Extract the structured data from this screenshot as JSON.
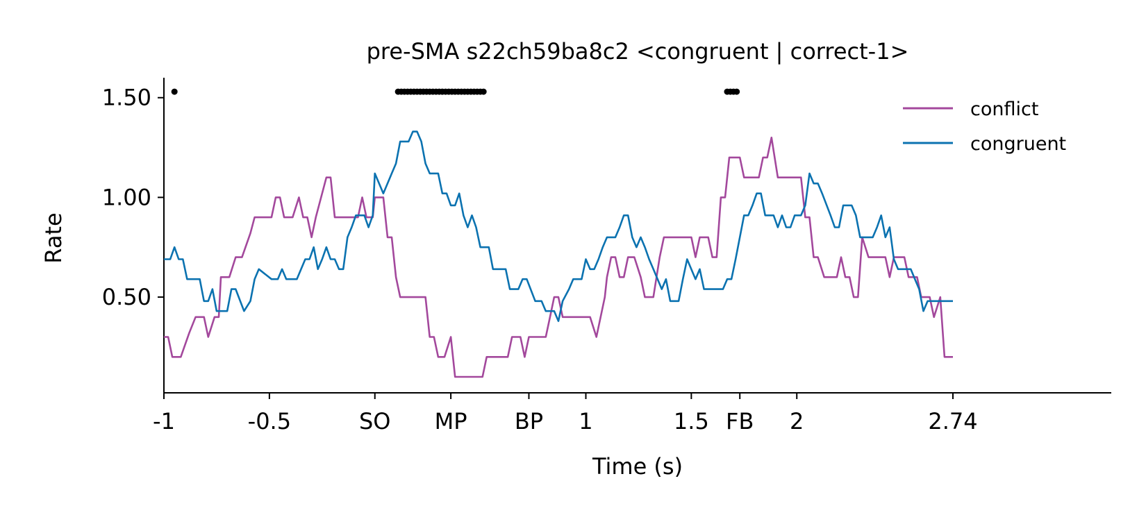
{
  "chart_data": {
    "type": "line",
    "title": "pre-SMA s22ch59ba8c2 <congruent | correct-1>",
    "xlabel": "Time (s)",
    "ylabel": "Rate",
    "xlim": [
      -1,
      3.5
    ],
    "ylim": [
      0.02,
      1.6
    ],
    "x_ticks": [
      {
        "value": -1,
        "label": "-1"
      },
      {
        "value": -0.5,
        "label": "-0.5"
      },
      {
        "value": 0,
        "label": "SO"
      },
      {
        "value": 0.36,
        "label": "MP"
      },
      {
        "value": 0.73,
        "label": "BP"
      },
      {
        "value": 1,
        "label": "1"
      },
      {
        "value": 1.5,
        "label": "1.5"
      },
      {
        "value": 1.73,
        "label": "FB"
      },
      {
        "value": 2,
        "label": "2"
      },
      {
        "value": 2.74,
        "label": "2.74"
      }
    ],
    "y_ticks": [
      {
        "value": 0.5,
        "label": "0.50"
      },
      {
        "value": 1.0,
        "label": "1.00"
      },
      {
        "value": 1.5,
        "label": "1.50"
      }
    ],
    "legend_position": "top-right",
    "grid": false,
    "series": [
      {
        "name": "conflict",
        "color": "#a3489c",
        "points": [
          [
            -1.0,
            0.3
          ],
          [
            -0.98,
            0.3
          ],
          [
            -0.96,
            0.2
          ],
          [
            -0.92,
            0.2
          ],
          [
            -0.88,
            0.32
          ],
          [
            -0.85,
            0.4
          ],
          [
            -0.81,
            0.4
          ],
          [
            -0.79,
            0.3
          ],
          [
            -0.76,
            0.4
          ],
          [
            -0.74,
            0.4
          ],
          [
            -0.73,
            0.6
          ],
          [
            -0.69,
            0.6
          ],
          [
            -0.66,
            0.7
          ],
          [
            -0.63,
            0.7
          ],
          [
            -0.59,
            0.82
          ],
          [
            -0.57,
            0.9
          ],
          [
            -0.49,
            0.9
          ],
          [
            -0.47,
            1.0
          ],
          [
            -0.45,
            1.0
          ],
          [
            -0.43,
            0.9
          ],
          [
            -0.39,
            0.9
          ],
          [
            -0.36,
            1.0
          ],
          [
            -0.34,
            0.9
          ],
          [
            -0.32,
            0.9
          ],
          [
            -0.3,
            0.8
          ],
          [
            -0.28,
            0.9
          ],
          [
            -0.23,
            1.1
          ],
          [
            -0.21,
            1.1
          ],
          [
            -0.19,
            0.9
          ],
          [
            -0.08,
            0.9
          ],
          [
            -0.06,
            1.0
          ],
          [
            -0.04,
            0.9
          ],
          [
            -0.01,
            0.9
          ],
          [
            0.0,
            1.0
          ],
          [
            0.04,
            1.0
          ],
          [
            0.06,
            0.8
          ],
          [
            0.08,
            0.8
          ],
          [
            0.1,
            0.6
          ],
          [
            0.12,
            0.5
          ],
          [
            0.24,
            0.5
          ],
          [
            0.26,
            0.3
          ],
          [
            0.28,
            0.3
          ],
          [
            0.3,
            0.2
          ],
          [
            0.33,
            0.2
          ],
          [
            0.36,
            0.3
          ],
          [
            0.38,
            0.1
          ],
          [
            0.51,
            0.1
          ],
          [
            0.53,
            0.2
          ],
          [
            0.63,
            0.2
          ],
          [
            0.65,
            0.3
          ],
          [
            0.69,
            0.3
          ],
          [
            0.71,
            0.2
          ],
          [
            0.73,
            0.3
          ],
          [
            0.81,
            0.3
          ],
          [
            0.83,
            0.4
          ],
          [
            0.85,
            0.5
          ],
          [
            0.87,
            0.5
          ],
          [
            0.89,
            0.4
          ],
          [
            0.99,
            0.4
          ],
          [
            1.02,
            0.4
          ],
          [
            1.05,
            0.3
          ],
          [
            1.09,
            0.5
          ],
          [
            1.1,
            0.6
          ],
          [
            1.12,
            0.7
          ],
          [
            1.14,
            0.7
          ],
          [
            1.16,
            0.6
          ],
          [
            1.18,
            0.6
          ],
          [
            1.2,
            0.7
          ],
          [
            1.23,
            0.7
          ],
          [
            1.26,
            0.6
          ],
          [
            1.28,
            0.5
          ],
          [
            1.32,
            0.5
          ],
          [
            1.35,
            0.7
          ],
          [
            1.37,
            0.8
          ],
          [
            1.5,
            0.8
          ],
          [
            1.52,
            0.7
          ],
          [
            1.54,
            0.8
          ],
          [
            1.58,
            0.8
          ],
          [
            1.6,
            0.7
          ],
          [
            1.62,
            0.7
          ],
          [
            1.64,
            1.0
          ],
          [
            1.66,
            1.0
          ],
          [
            1.68,
            1.2
          ],
          [
            1.73,
            1.2
          ],
          [
            1.75,
            1.1
          ],
          [
            1.82,
            1.1
          ],
          [
            1.84,
            1.2
          ],
          [
            1.86,
            1.2
          ],
          [
            1.88,
            1.3
          ],
          [
            1.91,
            1.1
          ],
          [
            2.02,
            1.1
          ],
          [
            2.04,
            0.9
          ],
          [
            2.06,
            0.9
          ],
          [
            2.08,
            0.7
          ],
          [
            2.1,
            0.7
          ],
          [
            2.13,
            0.6
          ],
          [
            2.19,
            0.6
          ],
          [
            2.21,
            0.7
          ],
          [
            2.23,
            0.6
          ],
          [
            2.25,
            0.6
          ],
          [
            2.27,
            0.5
          ],
          [
            2.29,
            0.5
          ],
          [
            2.31,
            0.8
          ],
          [
            2.34,
            0.7
          ],
          [
            2.42,
            0.7
          ],
          [
            2.44,
            0.6
          ],
          [
            2.46,
            0.7
          ],
          [
            2.51,
            0.7
          ],
          [
            2.53,
            0.6
          ],
          [
            2.57,
            0.6
          ],
          [
            2.59,
            0.5
          ],
          [
            2.63,
            0.5
          ],
          [
            2.65,
            0.4
          ],
          [
            2.68,
            0.5
          ],
          [
            2.7,
            0.2
          ],
          [
            2.74,
            0.2
          ]
        ]
      },
      {
        "name": "congruent",
        "color": "#0b72b0",
        "points": [
          [
            -1.0,
            0.69
          ],
          [
            -0.97,
            0.69
          ],
          [
            -0.95,
            0.75
          ],
          [
            -0.93,
            0.69
          ],
          [
            -0.91,
            0.69
          ],
          [
            -0.89,
            0.59
          ],
          [
            -0.83,
            0.59
          ],
          [
            -0.81,
            0.48
          ],
          [
            -0.79,
            0.48
          ],
          [
            -0.77,
            0.54
          ],
          [
            -0.75,
            0.43
          ],
          [
            -0.7,
            0.43
          ],
          [
            -0.68,
            0.54
          ],
          [
            -0.66,
            0.54
          ],
          [
            -0.62,
            0.43
          ],
          [
            -0.59,
            0.48
          ],
          [
            -0.57,
            0.59
          ],
          [
            -0.55,
            0.64
          ],
          [
            -0.49,
            0.59
          ],
          [
            -0.46,
            0.59
          ],
          [
            -0.44,
            0.64
          ],
          [
            -0.42,
            0.59
          ],
          [
            -0.37,
            0.59
          ],
          [
            -0.33,
            0.69
          ],
          [
            -0.31,
            0.69
          ],
          [
            -0.29,
            0.75
          ],
          [
            -0.27,
            0.64
          ],
          [
            -0.25,
            0.69
          ],
          [
            -0.23,
            0.75
          ],
          [
            -0.21,
            0.69
          ],
          [
            -0.19,
            0.69
          ],
          [
            -0.17,
            0.64
          ],
          [
            -0.15,
            0.64
          ],
          [
            -0.13,
            0.8
          ],
          [
            -0.11,
            0.85
          ],
          [
            -0.09,
            0.91
          ],
          [
            -0.05,
            0.91
          ],
          [
            -0.03,
            0.85
          ],
          [
            -0.01,
            0.91
          ],
          [
            0.0,
            1.12
          ],
          [
            0.02,
            1.07
          ],
          [
            0.04,
            1.02
          ],
          [
            0.06,
            1.07
          ],
          [
            0.08,
            1.12
          ],
          [
            0.1,
            1.17
          ],
          [
            0.12,
            1.28
          ],
          [
            0.16,
            1.28
          ],
          [
            0.18,
            1.33
          ],
          [
            0.2,
            1.33
          ],
          [
            0.22,
            1.28
          ],
          [
            0.24,
            1.17
          ],
          [
            0.26,
            1.12
          ],
          [
            0.3,
            1.12
          ],
          [
            0.32,
            1.02
          ],
          [
            0.34,
            1.02
          ],
          [
            0.36,
            0.96
          ],
          [
            0.38,
            0.96
          ],
          [
            0.4,
            1.02
          ],
          [
            0.42,
            0.91
          ],
          [
            0.44,
            0.85
          ],
          [
            0.46,
            0.91
          ],
          [
            0.48,
            0.85
          ],
          [
            0.5,
            0.75
          ],
          [
            0.54,
            0.75
          ],
          [
            0.56,
            0.64
          ],
          [
            0.62,
            0.64
          ],
          [
            0.64,
            0.54
          ],
          [
            0.68,
            0.54
          ],
          [
            0.7,
            0.59
          ],
          [
            0.72,
            0.59
          ],
          [
            0.76,
            0.48
          ],
          [
            0.79,
            0.48
          ],
          [
            0.81,
            0.43
          ],
          [
            0.85,
            0.43
          ],
          [
            0.87,
            0.38
          ],
          [
            0.89,
            0.48
          ],
          [
            0.92,
            0.54
          ],
          [
            0.94,
            0.59
          ],
          [
            0.98,
            0.59
          ],
          [
            1.0,
            0.69
          ],
          [
            1.02,
            0.64
          ],
          [
            1.04,
            0.64
          ],
          [
            1.06,
            0.69
          ],
          [
            1.08,
            0.75
          ],
          [
            1.1,
            0.8
          ],
          [
            1.14,
            0.8
          ],
          [
            1.16,
            0.85
          ],
          [
            1.18,
            0.91
          ],
          [
            1.2,
            0.91
          ],
          [
            1.22,
            0.8
          ],
          [
            1.24,
            0.75
          ],
          [
            1.26,
            0.8
          ],
          [
            1.28,
            0.75
          ],
          [
            1.3,
            0.69
          ],
          [
            1.32,
            0.64
          ],
          [
            1.34,
            0.59
          ],
          [
            1.36,
            0.54
          ],
          [
            1.38,
            0.59
          ],
          [
            1.4,
            0.48
          ],
          [
            1.44,
            0.48
          ],
          [
            1.46,
            0.59
          ],
          [
            1.48,
            0.69
          ],
          [
            1.52,
            0.59
          ],
          [
            1.54,
            0.64
          ],
          [
            1.56,
            0.54
          ],
          [
            1.65,
            0.54
          ],
          [
            1.67,
            0.59
          ],
          [
            1.69,
            0.59
          ],
          [
            1.71,
            0.69
          ],
          [
            1.73,
            0.8
          ],
          [
            1.75,
            0.91
          ],
          [
            1.77,
            0.91
          ],
          [
            1.79,
            0.96
          ],
          [
            1.81,
            1.02
          ],
          [
            1.83,
            1.02
          ],
          [
            1.85,
            0.91
          ],
          [
            1.89,
            0.91
          ],
          [
            1.91,
            0.85
          ],
          [
            1.93,
            0.91
          ],
          [
            1.95,
            0.85
          ],
          [
            1.97,
            0.85
          ],
          [
            1.99,
            0.91
          ],
          [
            2.02,
            0.91
          ],
          [
            2.04,
            0.96
          ],
          [
            2.06,
            1.12
          ],
          [
            2.08,
            1.07
          ],
          [
            2.1,
            1.07
          ],
          [
            2.12,
            1.02
          ],
          [
            2.16,
            0.91
          ],
          [
            2.18,
            0.85
          ],
          [
            2.2,
            0.85
          ],
          [
            2.22,
            0.96
          ],
          [
            2.26,
            0.96
          ],
          [
            2.28,
            0.91
          ],
          [
            2.3,
            0.8
          ],
          [
            2.36,
            0.8
          ],
          [
            2.38,
            0.85
          ],
          [
            2.4,
            0.91
          ],
          [
            2.42,
            0.8
          ],
          [
            2.44,
            0.85
          ],
          [
            2.46,
            0.69
          ],
          [
            2.48,
            0.64
          ],
          [
            2.54,
            0.64
          ],
          [
            2.56,
            0.59
          ],
          [
            2.58,
            0.54
          ],
          [
            2.6,
            0.43
          ],
          [
            2.62,
            0.48
          ],
          [
            2.74,
            0.48
          ]
        ]
      }
    ],
    "significance_markers": [
      {
        "y": 1.53,
        "x": [
          -0.95
        ]
      },
      {
        "y": 1.53,
        "x": [
          0.11,
          0.125,
          0.14,
          0.155,
          0.17,
          0.185,
          0.2,
          0.215,
          0.23,
          0.245,
          0.26,
          0.275,
          0.29,
          0.305,
          0.32,
          0.335,
          0.35,
          0.365,
          0.38,
          0.395,
          0.41,
          0.425,
          0.44,
          0.455,
          0.47,
          0.485,
          0.5,
          0.515
        ]
      },
      {
        "y": 1.53,
        "x": [
          1.67,
          1.685,
          1.7,
          1.715
        ]
      }
    ]
  }
}
